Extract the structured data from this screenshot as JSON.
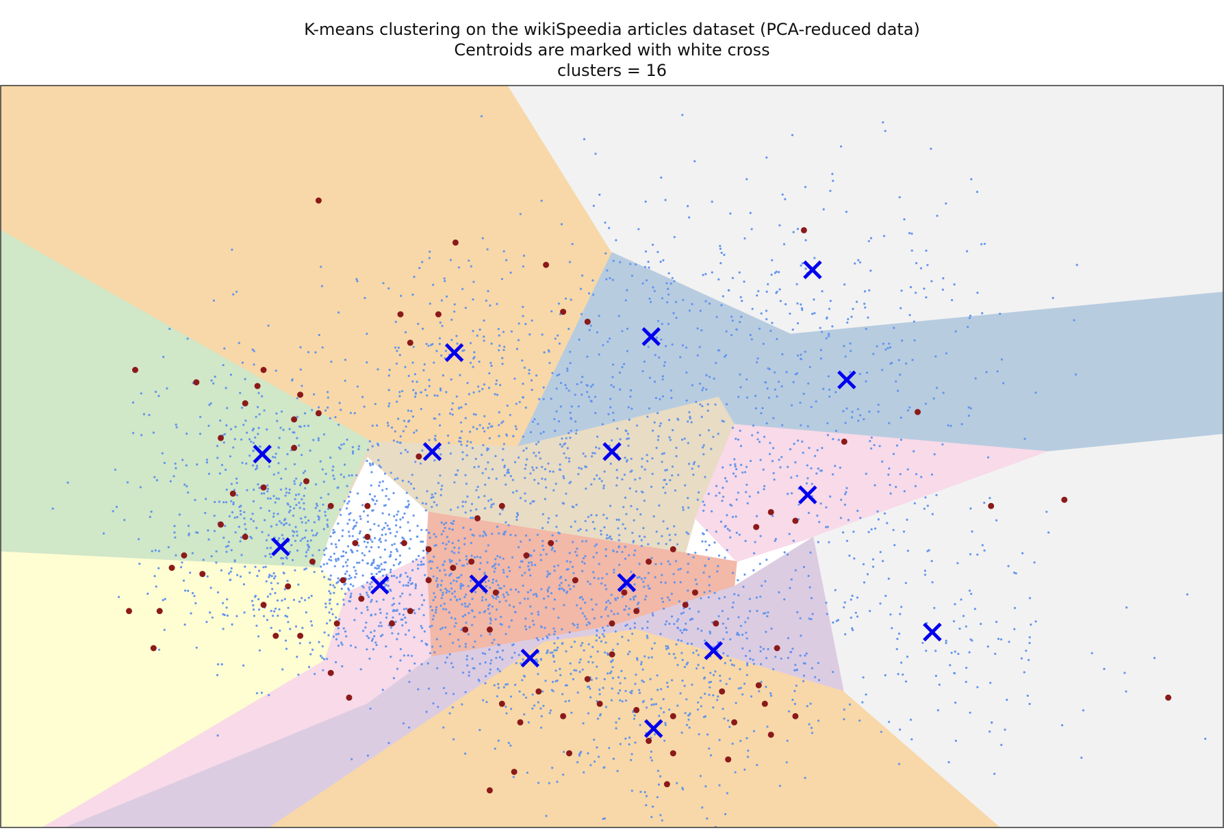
{
  "chart_data": {
    "type": "scatter",
    "title_lines": [
      "K-means clustering on the wikiSpeedia articles dataset (PCA-reduced data)",
      "Centroids are marked with white cross",
      "clusters = 16"
    ],
    "xlabel": "",
    "ylabel": "",
    "axes_ticks": "hidden",
    "xlim": [
      -0.5,
      0.5
    ],
    "ylim": [
      -0.3,
      0.3
    ],
    "grid": false,
    "legend": "none",
    "colors": {
      "points": "#6495ED",
      "highlight_points": "#8B1A1A",
      "centroids": "#0000EE",
      "frame": "#333333"
    },
    "regions": [
      {
        "color": "#F8D8A8",
        "polygon": [
          [
            -0.5,
            0.3
          ],
          [
            -0.085,
            0.3
          ],
          [
            0.0,
            0.165
          ],
          [
            -0.077,
            0.008
          ],
          [
            -0.197,
            0.012
          ],
          [
            -0.5,
            0.183
          ]
        ]
      },
      {
        "color": "#F2F2F2",
        "polygon": [
          [
            -0.085,
            0.3
          ],
          [
            0.5,
            0.3
          ],
          [
            0.5,
            0.133
          ],
          [
            0.146,
            0.099
          ],
          [
            0.0,
            0.165
          ]
        ]
      },
      {
        "color": "#D0E7C8",
        "polygon": [
          [
            -0.5,
            0.183
          ],
          [
            -0.197,
            0.012
          ],
          [
            -0.23,
            -0.06
          ],
          [
            -0.24,
            -0.09
          ],
          [
            -0.5,
            -0.077
          ]
        ]
      },
      {
        "color": "#B8CCE0",
        "polygon": [
          [
            0.0,
            0.165
          ],
          [
            0.146,
            0.099
          ],
          [
            0.5,
            0.133
          ],
          [
            0.5,
            0.018
          ],
          [
            0.357,
            0.004
          ],
          [
            0.1,
            0.026
          ],
          [
            0.087,
            0.048
          ],
          [
            -0.077,
            0.008
          ]
        ]
      },
      {
        "color": "#E8DCC4",
        "polygon": [
          [
            -0.197,
            0.012
          ],
          [
            -0.077,
            0.008
          ],
          [
            0.087,
            0.048
          ],
          [
            0.1,
            0.026
          ],
          [
            0.068,
            -0.05
          ],
          [
            0.06,
            -0.078
          ],
          [
            -0.15,
            -0.045
          ],
          [
            -0.2,
            -0.0
          ],
          [
            -0.23,
            -0.06
          ]
        ]
      },
      {
        "color": "#FFFDD2",
        "polygon": [
          [
            -0.5,
            -0.077
          ],
          [
            -0.24,
            -0.09
          ],
          [
            -0.217,
            -0.11
          ],
          [
            -0.235,
            -0.165
          ],
          [
            -0.5,
            -0.32
          ]
        ]
      },
      {
        "color": "#F8DAE8",
        "polygon": [
          [
            0.068,
            -0.05
          ],
          [
            0.1,
            0.026
          ],
          [
            0.357,
            0.004
          ],
          [
            0.165,
            -0.065
          ],
          [
            0.102,
            -0.085
          ]
        ]
      },
      {
        "color": "#F2B8A8",
        "polygon": [
          [
            -0.15,
            -0.045
          ],
          [
            0.06,
            -0.078
          ],
          [
            0.102,
            -0.085
          ],
          [
            0.1,
            -0.105
          ],
          [
            0.0,
            -0.137
          ],
          [
            -0.148,
            -0.162
          ],
          [
            -0.152,
            -0.08
          ]
        ]
      },
      {
        "color": "#F8DAE8",
        "polygon": [
          [
            -0.217,
            -0.11
          ],
          [
            -0.152,
            -0.08
          ],
          [
            -0.148,
            -0.162
          ],
          [
            -0.2,
            -0.2
          ],
          [
            -0.447,
            -0.3
          ],
          [
            -0.5,
            -0.3
          ],
          [
            -0.5,
            -0.32
          ],
          [
            -0.235,
            -0.165
          ]
        ]
      },
      {
        "color": "#DCCCE2",
        "polygon": [
          [
            -0.148,
            -0.162
          ],
          [
            0.0,
            -0.137
          ],
          [
            0.1,
            -0.105
          ],
          [
            0.165,
            -0.065
          ],
          [
            0.19,
            -0.19
          ],
          [
            0.02,
            -0.14
          ],
          [
            -0.055,
            -0.15
          ],
          [
            -0.28,
            -0.3
          ],
          [
            -0.447,
            -0.3
          ],
          [
            -0.2,
            -0.2
          ]
        ]
      },
      {
        "color": "#F8D8A8",
        "polygon": [
          [
            -0.28,
            -0.3
          ],
          [
            -0.055,
            -0.15
          ],
          [
            0.02,
            -0.14
          ],
          [
            0.19,
            -0.19
          ],
          [
            0.318,
            -0.3
          ]
        ]
      },
      {
        "color": "#F2F2F2",
        "polygon": [
          [
            0.357,
            0.004
          ],
          [
            0.5,
            0.018
          ],
          [
            0.5,
            -0.3
          ],
          [
            0.318,
            -0.3
          ],
          [
            0.19,
            -0.19
          ],
          [
            0.165,
            -0.065
          ]
        ]
      }
    ],
    "centroids": [
      {
        "x": 0.164,
        "y": 0.151
      },
      {
        "x": -0.129,
        "y": 0.084
      },
      {
        "x": 0.032,
        "y": 0.097
      },
      {
        "x": 0.192,
        "y": 0.062
      },
      {
        "x": -0.286,
        "y": 0.002
      },
      {
        "x": -0.147,
        "y": 0.004
      },
      {
        "x": 0.0,
        "y": 0.004
      },
      {
        "x": 0.16,
        "y": -0.031
      },
      {
        "x": -0.271,
        "y": -0.073
      },
      {
        "x": -0.19,
        "y": -0.104
      },
      {
        "x": -0.109,
        "y": -0.103
      },
      {
        "x": 0.012,
        "y": -0.102
      },
      {
        "x": 0.262,
        "y": -0.142
      },
      {
        "x": -0.067,
        "y": -0.163
      },
      {
        "x": 0.083,
        "y": -0.157
      },
      {
        "x": 0.034,
        "y": -0.22
      }
    ],
    "point_clusters": [
      {
        "cx": -0.271,
        "cy": -0.073,
        "sx": 0.05,
        "sy": 0.045,
        "n": 420
      },
      {
        "cx": -0.19,
        "cy": -0.104,
        "sx": 0.04,
        "sy": 0.035,
        "n": 360
      },
      {
        "cx": -0.109,
        "cy": -0.103,
        "sx": 0.045,
        "sy": 0.04,
        "n": 330
      },
      {
        "cx": 0.012,
        "cy": -0.102,
        "sx": 0.055,
        "sy": 0.04,
        "n": 300
      },
      {
        "cx": -0.147,
        "cy": 0.004,
        "sx": 0.06,
        "sy": 0.045,
        "n": 260
      },
      {
        "cx": 0.0,
        "cy": 0.004,
        "sx": 0.07,
        "sy": 0.04,
        "n": 260
      },
      {
        "cx": -0.129,
        "cy": 0.084,
        "sx": 0.045,
        "sy": 0.045,
        "n": 160
      },
      {
        "cx": 0.032,
        "cy": 0.097,
        "sx": 0.07,
        "sy": 0.05,
        "n": 200
      },
      {
        "cx": 0.164,
        "cy": 0.151,
        "sx": 0.09,
        "sy": 0.05,
        "n": 150
      },
      {
        "cx": 0.192,
        "cy": 0.062,
        "sx": 0.06,
        "sy": 0.04,
        "n": 130
      },
      {
        "cx": 0.16,
        "cy": -0.031,
        "sx": 0.06,
        "sy": 0.035,
        "n": 150
      },
      {
        "cx": -0.286,
        "cy": 0.002,
        "sx": 0.06,
        "sy": 0.05,
        "n": 180
      },
      {
        "cx": 0.262,
        "cy": -0.142,
        "sx": 0.07,
        "sy": 0.05,
        "n": 150
      },
      {
        "cx": -0.067,
        "cy": -0.163,
        "sx": 0.055,
        "sy": 0.04,
        "n": 200
      },
      {
        "cx": 0.083,
        "cy": -0.157,
        "sx": 0.06,
        "sy": 0.04,
        "n": 220
      },
      {
        "cx": 0.034,
        "cy": -0.22,
        "sx": 0.045,
        "sy": 0.04,
        "n": 180
      }
    ],
    "highlight_points": [
      [
        -0.39,
        0.07
      ],
      [
        -0.32,
        0.015
      ],
      [
        -0.285,
        -0.025
      ],
      [
        -0.3,
        -0.065
      ],
      [
        -0.245,
        -0.085
      ],
      [
        -0.265,
        -0.105
      ],
      [
        -0.335,
        -0.095
      ],
      [
        -0.37,
        -0.125
      ],
      [
        -0.395,
        -0.125
      ],
      [
        -0.375,
        -0.155
      ],
      [
        -0.285,
        -0.12
      ],
      [
        -0.275,
        -0.145
      ],
      [
        -0.255,
        -0.145
      ],
      [
        -0.225,
        -0.135
      ],
      [
        -0.205,
        -0.115
      ],
      [
        -0.23,
        -0.175
      ],
      [
        -0.215,
        -0.195
      ],
      [
        -0.165,
        -0.125
      ],
      [
        -0.18,
        -0.135
      ],
      [
        -0.15,
        -0.1
      ],
      [
        -0.13,
        -0.09
      ],
      [
        -0.115,
        -0.085
      ],
      [
        -0.095,
        -0.11
      ],
      [
        -0.1,
        -0.14
      ],
      [
        -0.12,
        -0.14
      ],
      [
        -0.09,
        -0.2
      ],
      [
        -0.06,
        -0.19
      ],
      [
        -0.075,
        -0.215
      ],
      [
        -0.04,
        -0.21
      ],
      [
        -0.035,
        -0.24
      ],
      [
        -0.1,
        -0.27
      ],
      [
        -0.08,
        -0.255
      ],
      [
        -0.02,
        -0.18
      ],
      [
        -0.01,
        -0.2
      ],
      [
        0.05,
        -0.21
      ],
      [
        0.05,
        -0.24
      ],
      [
        0.045,
        -0.265
      ],
      [
        0.03,
        -0.23
      ],
      [
        0.02,
        -0.205
      ],
      [
        0.1,
        -0.215
      ],
      [
        0.095,
        -0.245
      ],
      [
        0.13,
        -0.225
      ],
      [
        0.125,
        -0.2
      ],
      [
        0.09,
        -0.19
      ],
      [
        0.12,
        -0.185
      ],
      [
        0.15,
        -0.21
      ],
      [
        0.135,
        -0.155
      ],
      [
        0.085,
        -0.135
      ],
      [
        0.06,
        -0.12
      ],
      [
        0.068,
        -0.11
      ],
      [
        0.05,
        -0.075
      ],
      [
        0.03,
        -0.085
      ],
      [
        0.01,
        -0.11
      ],
      [
        0.02,
        -0.125
      ],
      [
        0.0,
        -0.16
      ],
      [
        0.25,
        0.036
      ],
      [
        0.31,
        -0.04
      ],
      [
        0.37,
        -0.035
      ],
      [
        0.455,
        -0.195
      ],
      [
        0.19,
        0.012
      ],
      [
        0.157,
        0.183
      ],
      [
        -0.054,
        0.155
      ],
      [
        -0.24,
        0.207
      ],
      [
        -0.165,
        0.092
      ],
      [
        -0.173,
        0.115
      ],
      [
        -0.142,
        0.115
      ],
      [
        -0.128,
        0.173
      ],
      [
        -0.04,
        0.117
      ],
      [
        -0.02,
        0.109
      ],
      [
        -0.158,
        0.0
      ],
      [
        -0.11,
        -0.05
      ],
      [
        -0.09,
        -0.04
      ],
      [
        -0.07,
        -0.08
      ],
      [
        -0.15,
        -0.075
      ],
      [
        -0.26,
        0.007
      ],
      [
        -0.25,
        -0.02
      ],
      [
        -0.2,
        -0.04
      ],
      [
        -0.2,
        -0.065
      ],
      [
        -0.23,
        -0.04
      ],
      [
        0.15,
        -0.052
      ],
      [
        0.13,
        -0.045
      ],
      [
        0.118,
        -0.057
      ],
      [
        -0.255,
        0.05
      ],
      [
        -0.29,
        0.057
      ],
      [
        -0.285,
        0.07
      ],
      [
        -0.34,
        0.06
      ],
      [
        -0.3,
        0.043
      ],
      [
        -0.26,
        0.03
      ],
      [
        -0.24,
        0.035
      ],
      [
        -0.31,
        -0.03
      ],
      [
        -0.32,
        -0.055
      ],
      [
        -0.35,
        -0.08
      ],
      [
        -0.36,
        -0.09
      ],
      [
        -0.22,
        -0.1
      ],
      [
        -0.21,
        -0.07
      ],
      [
        -0.17,
        -0.07
      ],
      [
        -0.05,
        -0.07
      ],
      [
        -0.03,
        -0.1
      ],
      [
        0.0,
        -0.135
      ]
    ]
  }
}
